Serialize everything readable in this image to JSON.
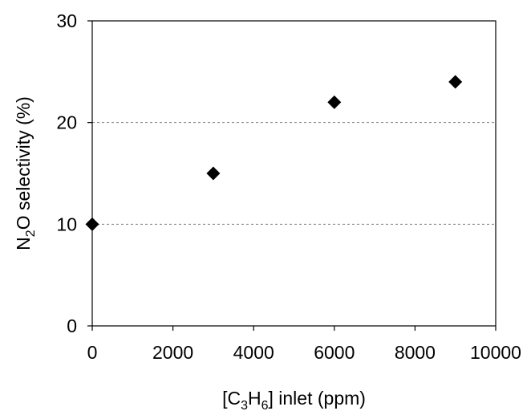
{
  "chart_data": {
    "type": "scatter",
    "title": "",
    "xlabel": {
      "pre": "[C",
      "sub1": "3",
      "mid": "H",
      "sub2": "6",
      "post": "] inlet (ppm)"
    },
    "ylabel": {
      "pre": "N",
      "sub": "2",
      "post": "O selectivity (%)"
    },
    "xlim": [
      0,
      10000
    ],
    "ylim": [
      0,
      30
    ],
    "x_ticks": [
      0,
      2000,
      4000,
      6000,
      8000,
      10000
    ],
    "y_ticks": [
      0,
      10,
      20,
      30
    ],
    "x_tick_labels": [
      "0",
      "2000",
      "4000",
      "6000",
      "8000",
      "10000"
    ],
    "y_tick_labels": [
      "0",
      "10",
      "20",
      "30"
    ],
    "gridlines_y": [
      10,
      20
    ],
    "grid": "dashed horizontal",
    "marker": "diamond",
    "marker_color": "#000000",
    "series": [
      {
        "x": [
          0,
          3000,
          6000,
          9000
        ],
        "y": [
          10,
          15,
          22,
          24
        ]
      }
    ]
  }
}
